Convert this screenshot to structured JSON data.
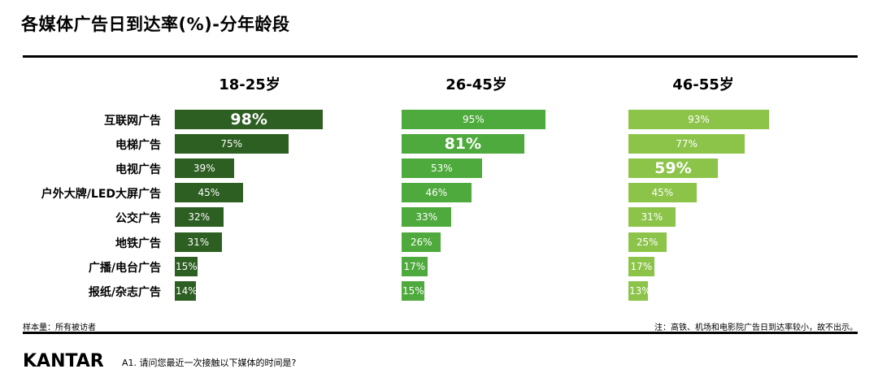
{
  "title": "各媒体广告日到达率(%)-分年龄段",
  "note_left": "样本量：所有被访者",
  "note_right": "注：高铁、机场和电影院广告日到达率较小，故不出示。",
  "logo": "KANTAR",
  "footnote": "A1. 请问您最近一次接触以下媒体的时间是?",
  "chart_data": {
    "type": "bar",
    "orientation": "horizontal",
    "categories": [
      "互联网广告",
      "电梯广告",
      "电视广告",
      "户外大牌/LED大屏广告",
      "公交广告",
      "地铁广告",
      "广播/电台广告",
      "报纸/杂志广告"
    ],
    "series": [
      {
        "name": "18-25岁",
        "values": [
          98,
          75,
          39,
          45,
          32,
          31,
          15,
          14
        ],
        "color": "#2d5e22",
        "highlight_index": 0
      },
      {
        "name": "26-45岁",
        "values": [
          95,
          81,
          53,
          46,
          33,
          26,
          17,
          15
        ],
        "color": "#4eaa3c",
        "highlight_index": 1
      },
      {
        "name": "46-55岁",
        "values": [
          93,
          77,
          59,
          45,
          31,
          25,
          17,
          13
        ],
        "color": "#8cc44a",
        "highlight_index": 2
      }
    ],
    "value_suffix": "%",
    "xlim": [
      0,
      100
    ]
  }
}
